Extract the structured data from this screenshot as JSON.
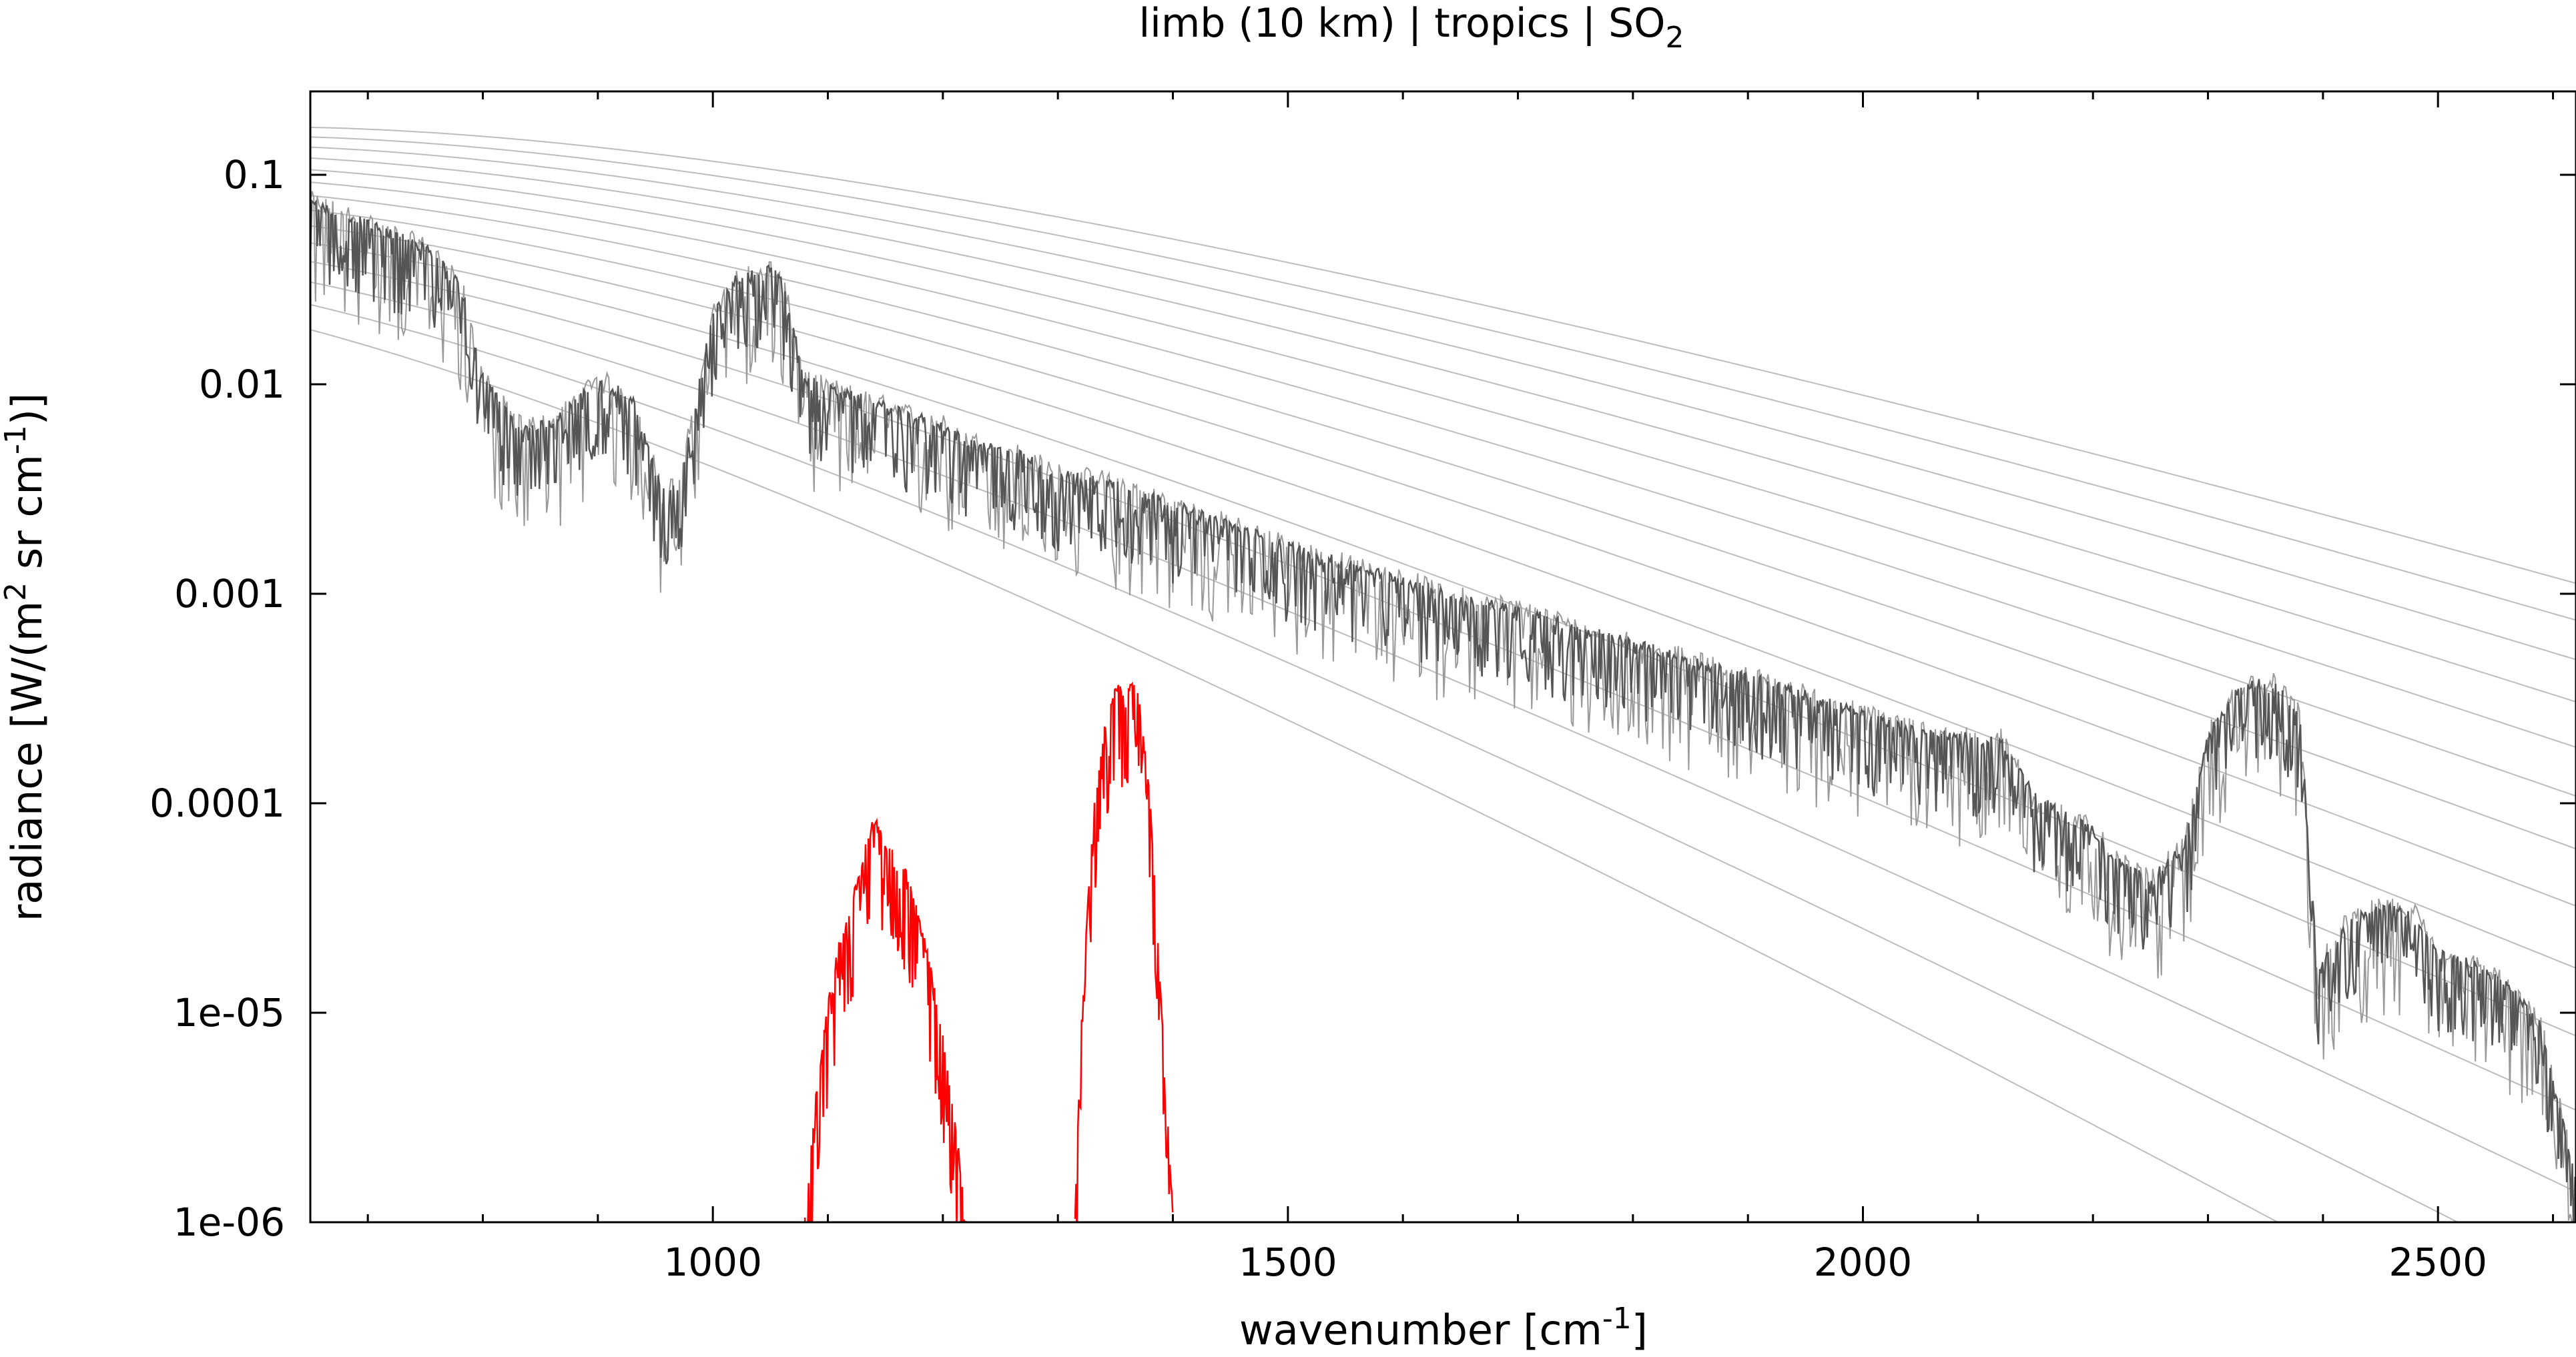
{
  "chart_data": {
    "type": "line",
    "title": {
      "prefix": "limb (10 km) | tropics | SO",
      "subscript": "2"
    },
    "xlabel": {
      "prefix": "wavenumber [cm",
      "superscript": "-1",
      "suffix": "]"
    },
    "ylabel": {
      "part1": "radiance [W/(m",
      "sup1": "2",
      "part2": " sr cm",
      "sup2": "-1",
      "part3": ")]"
    },
    "xlim": [
      650,
      2620
    ],
    "ylim": [
      1e-06,
      0.25
    ],
    "yscale": "log",
    "grid": false,
    "legend": "none",
    "x_ticks": [
      1000,
      1500,
      2000,
      2500
    ],
    "x_tick_labels": [
      "1000",
      "1500",
      "2000",
      "2500"
    ],
    "y_ticks": [
      0.1,
      0.01,
      0.001,
      0.0001,
      1e-05,
      1e-06
    ],
    "y_tick_labels": [
      "0.1",
      "0.01",
      "0.001",
      "0.0001",
      "1e-05",
      "1e-06"
    ],
    "colors": {
      "total": "#555555",
      "total_light": "#9a9a9a",
      "so2": "#ff0000",
      "planck": "#bdbdbd"
    },
    "series": [
      {
        "role": "total radiance (dark)",
        "x": [
          650,
          700,
          750,
          780,
          800,
          830,
          860,
          900,
          930,
          955,
          970,
          1000,
          1020,
          1040,
          1050,
          1060,
          1080,
          1100,
          1130,
          1160,
          1200,
          1220,
          1260,
          1300,
          1350,
          1400,
          1450,
          1500,
          1550,
          1600,
          1650,
          1700,
          1750,
          1800,
          1850,
          1900,
          1950,
          2000,
          2050,
          2100,
          2120,
          2150,
          2180,
          2200,
          2220,
          2250,
          2280,
          2300,
          2330,
          2360,
          2380,
          2395,
          2420,
          2450,
          2480,
          2500,
          2530,
          2560,
          2590,
          2620
        ],
        "y": [
          0.07,
          0.055,
          0.042,
          0.03,
          0.01,
          0.006,
          0.006,
          0.01,
          0.008,
          0.003,
          0.003,
          0.02,
          0.03,
          0.032,
          0.033,
          0.03,
          0.01,
          0.009,
          0.008,
          0.007,
          0.006,
          0.005,
          0.0045,
          0.0035,
          0.0032,
          0.0025,
          0.002,
          0.0016,
          0.0013,
          0.0011,
          0.0009,
          0.0008,
          0.00065,
          0.00055,
          0.00045,
          0.00038,
          0.00031,
          0.00025,
          0.00021,
          0.00019,
          0.00019,
          0.0001,
          8e-05,
          7e-05,
          5e-05,
          4e-05,
          6e-05,
          0.0002,
          0.00035,
          0.00035,
          0.00025,
          1.5e-05,
          2.5e-05,
          3e-05,
          2.8e-05,
          1.8e-05,
          1.6e-05,
          1.3e-05,
          8e-06,
          1.5e-06
        ]
      },
      {
        "role": "SO2 signal (band 1)",
        "x": [
          1080,
          1090,
          1100,
          1110,
          1120,
          1130,
          1140,
          1150,
          1160,
          1170,
          1180,
          1190,
          1200,
          1210,
          1220
        ],
        "y": [
          1e-06,
          4e-06,
          1e-05,
          2e-05,
          3e-05,
          5e-05,
          8e-05,
          6e-05,
          5.5e-05,
          4e-05,
          2.5e-05,
          1.5e-05,
          7e-06,
          3e-06,
          1e-06
        ]
      },
      {
        "role": "SO2 signal (band 2)",
        "x": [
          1315,
          1320,
          1330,
          1340,
          1350,
          1360,
          1365,
          1370,
          1380,
          1390,
          1400
        ],
        "y": [
          1e-06,
          8e-06,
          8e-05,
          0.0002,
          0.00035,
          0.0003,
          0.00035,
          0.0003,
          0.0001,
          1e-05,
          1e-06
        ]
      }
    ],
    "reference_curves": {
      "role": "Planck curves",
      "temperatures_K": [
        180,
        190,
        200,
        210,
        220,
        230,
        240,
        250,
        260,
        270,
        280,
        290,
        300,
        310
      ]
    }
  }
}
